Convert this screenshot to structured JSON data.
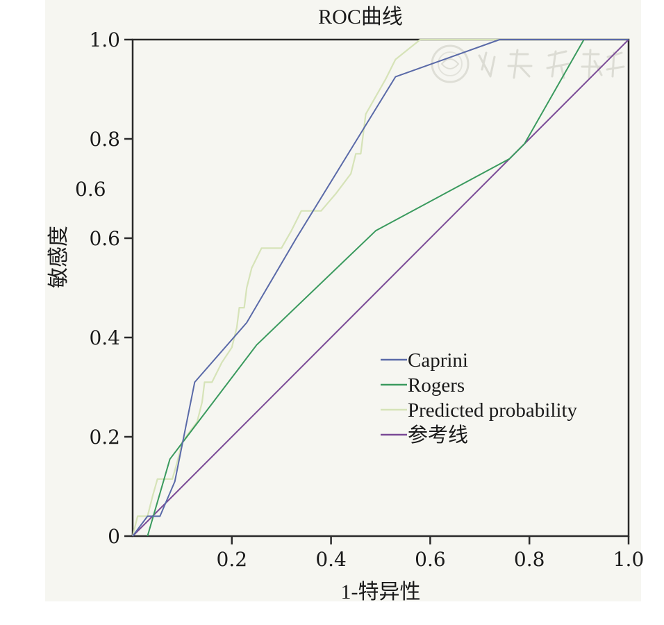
{
  "chart_data": {
    "type": "line",
    "title": "ROC曲线",
    "xlabel": "1-特异性",
    "ylabel": "敏感度",
    "xlim": [
      0,
      1
    ],
    "ylim": [
      0,
      1
    ],
    "x_tick_labels": [
      "0.2",
      "0.4",
      "0.6",
      "0.8",
      "1.0"
    ],
    "x_tick_values": [
      0.2,
      0.4,
      0.6,
      0.8,
      1.0
    ],
    "y_tick_labels": [
      "0",
      "0.2",
      "0.4",
      "0.6",
      "0.8",
      "1.0"
    ],
    "y_tick_values": [
      0,
      0.2,
      0.4,
      0.6,
      0.8,
      1.0
    ],
    "stray_label": "0.6",
    "legend_position": "center-right",
    "grid": false,
    "series": [
      {
        "name": "Caprini",
        "color": "#5a6aa8",
        "points": [
          [
            0,
            0
          ],
          [
            0.03,
            0.04
          ],
          [
            0.055,
            0.04
          ],
          [
            0.085,
            0.11
          ],
          [
            0.125,
            0.31
          ],
          [
            0.23,
            0.43
          ],
          [
            0.33,
            0.6
          ],
          [
            0.53,
            0.925
          ],
          [
            0.74,
            1.0
          ],
          [
            1.0,
            1.0
          ]
        ]
      },
      {
        "name": "Rogers",
        "color": "#3a9a5e",
        "points": [
          [
            0.03,
            0
          ],
          [
            0.075,
            0.155
          ],
          [
            0.25,
            0.385
          ],
          [
            0.49,
            0.615
          ],
          [
            0.76,
            0.76
          ],
          [
            0.79,
            0.79
          ],
          [
            0.91,
            1.0
          ],
          [
            1.0,
            1.0
          ]
        ]
      },
      {
        "name": "Predicted probability",
        "color": "#d6e3b8",
        "points": [
          [
            0,
            0
          ],
          [
            0.01,
            0.04
          ],
          [
            0.03,
            0.04
          ],
          [
            0.04,
            0.08
          ],
          [
            0.05,
            0.115
          ],
          [
            0.08,
            0.115
          ],
          [
            0.09,
            0.15
          ],
          [
            0.1,
            0.19
          ],
          [
            0.13,
            0.23
          ],
          [
            0.14,
            0.27
          ],
          [
            0.145,
            0.31
          ],
          [
            0.16,
            0.31
          ],
          [
            0.18,
            0.35
          ],
          [
            0.2,
            0.38
          ],
          [
            0.21,
            0.42
          ],
          [
            0.215,
            0.46
          ],
          [
            0.225,
            0.46
          ],
          [
            0.23,
            0.5
          ],
          [
            0.24,
            0.54
          ],
          [
            0.26,
            0.58
          ],
          [
            0.3,
            0.58
          ],
          [
            0.32,
            0.615
          ],
          [
            0.34,
            0.655
          ],
          [
            0.38,
            0.655
          ],
          [
            0.41,
            0.69
          ],
          [
            0.44,
            0.73
          ],
          [
            0.45,
            0.77
          ],
          [
            0.46,
            0.77
          ],
          [
            0.465,
            0.81
          ],
          [
            0.47,
            0.85
          ],
          [
            0.51,
            0.92
          ],
          [
            0.53,
            0.96
          ],
          [
            0.58,
            1.0
          ],
          [
            1.0,
            1.0
          ]
        ]
      },
      {
        "name": "参考线",
        "color": "#7a4a96",
        "points": [
          [
            0,
            0
          ],
          [
            1,
            1
          ]
        ]
      }
    ]
  }
}
